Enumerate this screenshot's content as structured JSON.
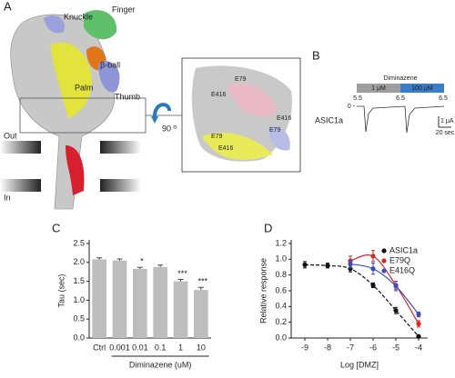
{
  "panel_a": {
    "label": "A",
    "knuckle": "Knuckle",
    "finger": "Finger",
    "beta_ball": "β-ball",
    "palm": "Palm",
    "thumb": "Thumb",
    "out": "Out",
    "in": "In",
    "rotation": "90 º",
    "inset_labels": [
      "E79",
      "E416",
      "E79",
      "E416",
      "E79",
      "E416"
    ]
  },
  "panel_b": {
    "label": "B",
    "drug": "Diminazene",
    "low_dose": "1 μM",
    "high_dose": "100 μM",
    "ph_labels": [
      "5.5",
      "6.5",
      "6.5"
    ],
    "trace_name": "ASIC1a",
    "zero": "0 -",
    "current_scale": "1 μA",
    "time_scale": "20 sec"
  },
  "chart_data": [
    {
      "type": "bar",
      "label": "C",
      "y_label": "Tau (sec)",
      "group_label": "Diminazene (uM)",
      "categories": [
        "Ctrl",
        "0.001",
        "0.01",
        "0.1",
        "1",
        "10"
      ],
      "values": [
        2.08,
        2.05,
        1.83,
        1.88,
        1.5,
        1.27
      ],
      "errors": [
        0.04,
        0.04,
        0.04,
        0.05,
        0.05,
        0.07
      ],
      "significance": [
        null,
        null,
        "*",
        null,
        "***",
        "***"
      ],
      "color": "#bdbdbd",
      "ylim": [
        0,
        2.5
      ],
      "yticks": [
        {
          "value": 0,
          "label": "0.0"
        },
        0.5,
        {
          "value": 1,
          "label": "1.0"
        },
        1.5,
        {
          "value": 2,
          "label": "2.0"
        },
        2.5
      ]
    },
    {
      "type": "line",
      "label": "D",
      "x_label": "Log [DMZ]",
      "y_label": "Relative response",
      "x": [
        -9,
        -8,
        -7,
        -6,
        -5,
        -4
      ],
      "series": [
        {
          "name": "ASIC1a",
          "color": "#111111",
          "dashed": true,
          "values": [
            0.93,
            0.92,
            0.88,
            0.67,
            0.35,
            0.02
          ],
          "errors": [
            0.04,
            0.03,
            0.04,
            0.03,
            0.04,
            0.01
          ]
        },
        {
          "name": "E79Q",
          "color": "#d62728",
          "dashed": false,
          "values": [
            null,
            null,
            0.98,
            1.04,
            0.67,
            0.18
          ],
          "errors": [
            null,
            null,
            0.06,
            0.07,
            0.05,
            0.04
          ]
        },
        {
          "name": "E416Q",
          "color": "#3b4cc0",
          "dashed": false,
          "values": [
            null,
            null,
            0.94,
            0.88,
            0.66,
            0.3
          ],
          "errors": [
            null,
            null,
            0.05,
            0.07,
            0.06,
            0.03
          ]
        }
      ],
      "xlim": [
        -9.6,
        -3.6
      ],
      "ylim": [
        0,
        1.2
      ],
      "xticks": [
        -9,
        -8,
        -7,
        -6,
        -5,
        -4
      ],
      "yticks": [
        {
          "value": 0,
          "label": "0.0"
        },
        0.2,
        0.4,
        0.6,
        0.8,
        {
          "value": 1,
          "label": "1.0"
        },
        1.2
      ],
      "legend": "upper-right"
    }
  ]
}
